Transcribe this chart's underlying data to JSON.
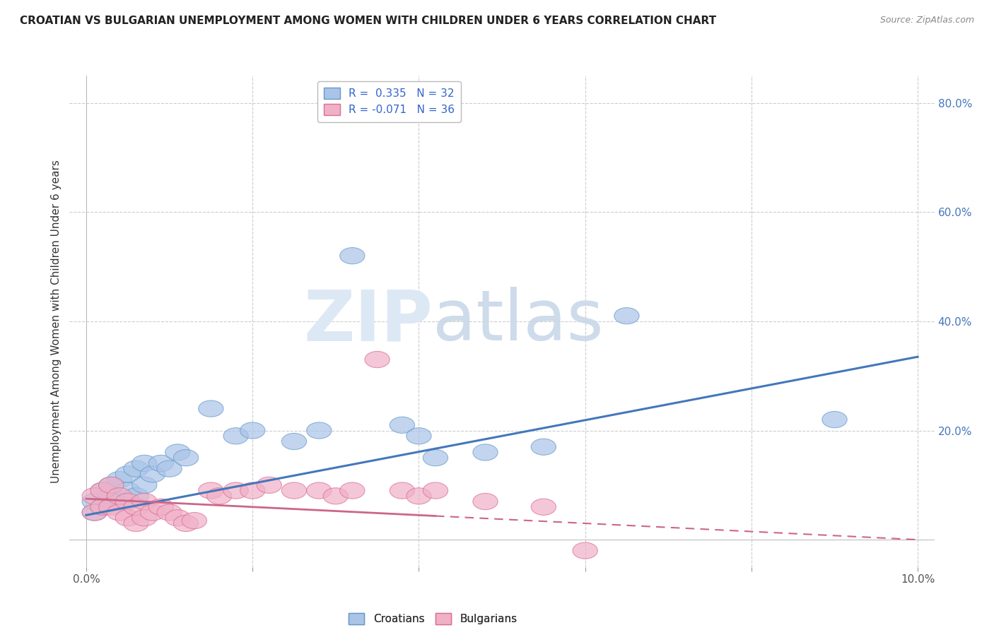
{
  "title": "CROATIAN VS BULGARIAN UNEMPLOYMENT AMONG WOMEN WITH CHILDREN UNDER 6 YEARS CORRELATION CHART",
  "source": "Source: ZipAtlas.com",
  "ylabel": "Unemployment Among Women with Children Under 6 years",
  "xlim": [
    -0.002,
    0.102
  ],
  "ylim": [
    -0.05,
    0.85
  ],
  "ytick_positions": [
    0.0,
    0.2,
    0.4,
    0.6,
    0.8
  ],
  "ytick_labels": [
    "",
    "20.0%",
    "40.0%",
    "60.0%",
    "80.0%"
  ],
  "xtick_positions": [
    0.0,
    0.02,
    0.04,
    0.06,
    0.08,
    0.1
  ],
  "xtick_labels": [
    "0.0%",
    "",
    "",
    "",
    "",
    "10.0%"
  ],
  "croatian_color": "#aac4e8",
  "croatian_edge": "#6699cc",
  "bulgarian_color": "#f0b0c8",
  "bulgarian_edge": "#d97090",
  "trend_blue": "#4477bb",
  "trend_pink": "#cc6688",
  "legend_line1": "R =  0.335   N = 32",
  "legend_line2": "R = -0.071   N = 36",
  "watermark_zip": "ZIP",
  "watermark_atlas": "atlas",
  "croatian_x": [
    0.001,
    0.001,
    0.002,
    0.002,
    0.003,
    0.003,
    0.004,
    0.004,
    0.005,
    0.005,
    0.006,
    0.006,
    0.007,
    0.007,
    0.008,
    0.009,
    0.01,
    0.011,
    0.012,
    0.015,
    0.018,
    0.02,
    0.025,
    0.028,
    0.032,
    0.038,
    0.04,
    0.042,
    0.048,
    0.055,
    0.065,
    0.09
  ],
  "croatian_y": [
    0.05,
    0.07,
    0.06,
    0.09,
    0.08,
    0.1,
    0.07,
    0.11,
    0.09,
    0.12,
    0.08,
    0.13,
    0.1,
    0.14,
    0.12,
    0.14,
    0.13,
    0.16,
    0.15,
    0.24,
    0.19,
    0.2,
    0.18,
    0.2,
    0.52,
    0.21,
    0.19,
    0.15,
    0.16,
    0.17,
    0.41,
    0.22
  ],
  "bulgarian_x": [
    0.001,
    0.001,
    0.002,
    0.002,
    0.003,
    0.003,
    0.004,
    0.004,
    0.005,
    0.005,
    0.006,
    0.006,
    0.007,
    0.007,
    0.008,
    0.009,
    0.01,
    0.011,
    0.012,
    0.013,
    0.015,
    0.016,
    0.018,
    0.02,
    0.022,
    0.025,
    0.028,
    0.03,
    0.032,
    0.035,
    0.038,
    0.04,
    0.042,
    0.048,
    0.055,
    0.06
  ],
  "bulgarian_y": [
    0.05,
    0.08,
    0.06,
    0.09,
    0.06,
    0.1,
    0.05,
    0.08,
    0.04,
    0.07,
    0.03,
    0.06,
    0.04,
    0.07,
    0.05,
    0.06,
    0.05,
    0.04,
    0.03,
    0.035,
    0.09,
    0.08,
    0.09,
    0.09,
    0.1,
    0.09,
    0.09,
    0.08,
    0.09,
    0.33,
    0.09,
    0.08,
    0.09,
    0.07,
    0.06,
    -0.02
  ],
  "trend_c_x0": 0.0,
  "trend_c_y0": 0.045,
  "trend_c_x1": 0.1,
  "trend_c_y1": 0.335,
  "trend_b_x0": 0.0,
  "trend_b_y0": 0.075,
  "trend_b_x1": 0.1,
  "trend_b_y1": 0.0,
  "trend_b_solid_x1": 0.042
}
